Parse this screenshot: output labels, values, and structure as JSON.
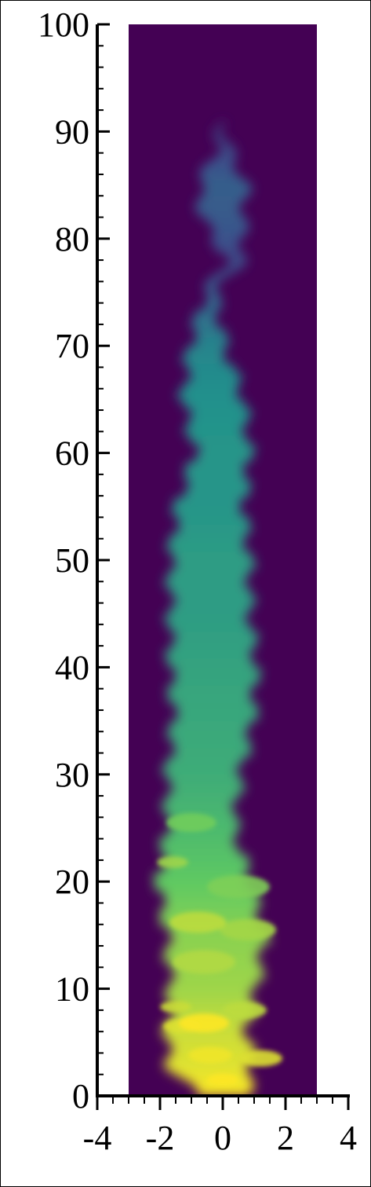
{
  "chart_data": {
    "type": "heatmap",
    "title": "",
    "xlabel": "",
    "ylabel": "",
    "xlim": [
      -4,
      4
    ],
    "ylim": [
      0,
      100
    ],
    "domain_x": [
      -3,
      3
    ],
    "x_ticks": [
      -4,
      -2,
      0,
      2,
      4
    ],
    "x_tick_labels": [
      "-4",
      "-2",
      "0",
      "2",
      "4"
    ],
    "y_ticks": [
      0,
      10,
      20,
      30,
      40,
      50,
      60,
      70,
      80,
      90,
      100
    ],
    "y_tick_labels": [
      "0",
      "10",
      "20",
      "30",
      "40",
      "50",
      "60",
      "70",
      "80",
      "90",
      "100"
    ],
    "grid": false,
    "colormap": "viridis",
    "colors": {
      "background": "#440154",
      "low": "#3b528b",
      "mid": "#21918c",
      "high": "#5ec962",
      "peak": "#fde725"
    },
    "plume_profile": [
      {
        "y": 0,
        "center": 0.0,
        "half_width": 0.8,
        "intensity": 1.0
      },
      {
        "y": 3,
        "center": -0.4,
        "half_width": 1.4,
        "intensity": 0.95
      },
      {
        "y": 6,
        "center": -0.5,
        "half_width": 1.3,
        "intensity": 0.92
      },
      {
        "y": 10,
        "center": -0.3,
        "half_width": 1.4,
        "intensity": 0.85
      },
      {
        "y": 15,
        "center": -0.2,
        "half_width": 1.6,
        "intensity": 0.82
      },
      {
        "y": 20,
        "center": -0.6,
        "half_width": 1.5,
        "intensity": 0.75
      },
      {
        "y": 25,
        "center": -0.7,
        "half_width": 1.1,
        "intensity": 0.68
      },
      {
        "y": 30,
        "center": -0.6,
        "half_width": 1.2,
        "intensity": 0.62
      },
      {
        "y": 35,
        "center": -0.3,
        "half_width": 1.3,
        "intensity": 0.6
      },
      {
        "y": 40,
        "center": -0.3,
        "half_width": 1.4,
        "intensity": 0.58
      },
      {
        "y": 45,
        "center": -0.4,
        "half_width": 1.3,
        "intensity": 0.55
      },
      {
        "y": 50,
        "center": -0.4,
        "half_width": 1.3,
        "intensity": 0.55
      },
      {
        "y": 55,
        "center": -0.4,
        "half_width": 1.1,
        "intensity": 0.52
      },
      {
        "y": 60,
        "center": 0.0,
        "half_width": 0.9,
        "intensity": 0.52
      },
      {
        "y": 65,
        "center": -0.3,
        "half_width": 1.0,
        "intensity": 0.5
      },
      {
        "y": 70,
        "center": -0.5,
        "half_width": 0.6,
        "intensity": 0.45
      },
      {
        "y": 75,
        "center": -0.4,
        "half_width": 0.2,
        "intensity": 0.3
      },
      {
        "y": 78,
        "center": 0.4,
        "half_width": 0.3,
        "intensity": 0.22
      },
      {
        "y": 82,
        "center": 0.0,
        "half_width": 0.7,
        "intensity": 0.28
      },
      {
        "y": 85,
        "center": 0.0,
        "half_width": 0.8,
        "intensity": 0.3
      },
      {
        "y": 88,
        "center": 0.0,
        "half_width": 0.3,
        "intensity": 0.22
      },
      {
        "y": 91,
        "center": 0.0,
        "half_width": 0.1,
        "intensity": 0.12
      }
    ],
    "swirls": [
      {
        "x": 0.0,
        "y": 1.5,
        "r": 0.5,
        "intensity": 1.0
      },
      {
        "x": -0.4,
        "y": 3.8,
        "r": 0.7,
        "intensity": 0.98
      },
      {
        "x": 1.2,
        "y": 3.5,
        "r": 0.7,
        "intensity": 0.95
      },
      {
        "x": -1.3,
        "y": 6.5,
        "r": 0.6,
        "intensity": 0.95
      },
      {
        "x": -0.6,
        "y": 6.8,
        "r": 0.8,
        "intensity": 1.0
      },
      {
        "x": 0.7,
        "y": 8.0,
        "r": 0.7,
        "intensity": 0.9
      },
      {
        "x": -1.5,
        "y": 8.3,
        "r": 0.5,
        "intensity": 0.92
      },
      {
        "x": -0.6,
        "y": 12.5,
        "r": 1.0,
        "intensity": 0.88
      },
      {
        "x": 0.8,
        "y": 15.5,
        "r": 0.9,
        "intensity": 0.86
      },
      {
        "x": -0.8,
        "y": 16.2,
        "r": 0.9,
        "intensity": 0.9
      },
      {
        "x": 0.5,
        "y": 19.5,
        "r": 1.0,
        "intensity": 0.8
      },
      {
        "x": -1.6,
        "y": 21.8,
        "r": 0.5,
        "intensity": 0.85
      },
      {
        "x": -1.0,
        "y": 25.5,
        "r": 0.8,
        "intensity": 0.78
      }
    ]
  }
}
